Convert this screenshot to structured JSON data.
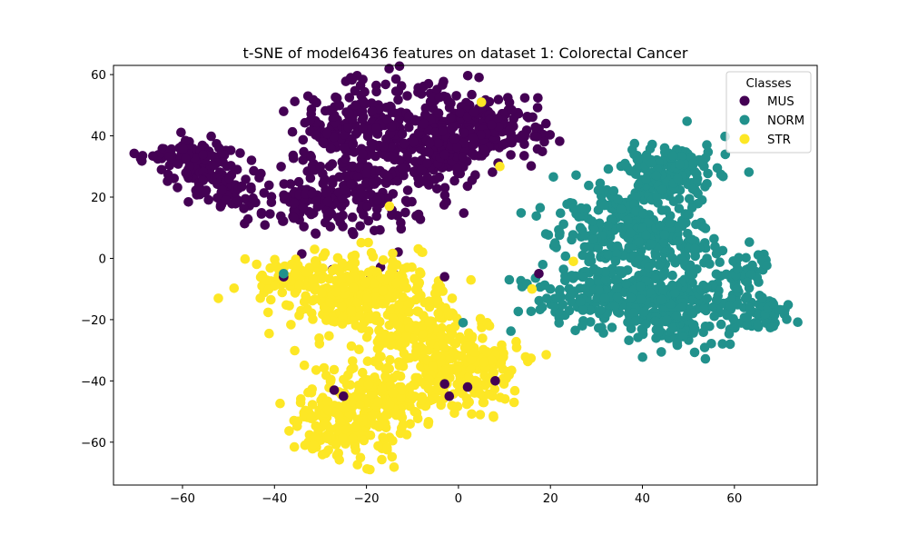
{
  "chart_data": {
    "type": "scatter",
    "title": "t-SNE of model6436 features on dataset 1: Colorectal Cancer",
    "xlabel": "",
    "ylabel": "",
    "xlim": [
      -75,
      78
    ],
    "ylim": [
      -74,
      63
    ],
    "x_ticks": [
      -60,
      -40,
      -20,
      0,
      20,
      40,
      60
    ],
    "y_ticks": [
      -60,
      -40,
      -20,
      0,
      20,
      40,
      60
    ],
    "grid": false,
    "legend": {
      "title": "Classes",
      "position": "top-right"
    },
    "series": [
      {
        "name": "MUS",
        "color": "#440154",
        "clusters": [
          {
            "cx": -58,
            "cy": 32,
            "sx": 5,
            "sy": 3.5,
            "n": 90
          },
          {
            "cx": -50,
            "cy": 22,
            "sx": 4,
            "sy": 3.5,
            "n": 70
          },
          {
            "cx": -33,
            "cy": 17,
            "sx": 5,
            "sy": 3.5,
            "n": 80
          },
          {
            "cx": -28,
            "cy": 43,
            "sx": 3,
            "sy": 5,
            "n": 40
          },
          {
            "cx": -20,
            "cy": 33,
            "sx": 7,
            "sy": 14,
            "n": 320
          },
          {
            "cx": -5,
            "cy": 40,
            "sx": 7,
            "sy": 8,
            "n": 220
          },
          {
            "cx": 8,
            "cy": 42,
            "sx": 6,
            "sy": 5,
            "n": 140
          }
        ],
        "points": [
          [
            -38,
            48
          ],
          [
            -30,
            30
          ],
          [
            -45,
            32
          ],
          [
            -31,
            8
          ],
          [
            17.5,
            -5
          ],
          [
            -3,
            -6
          ],
          [
            -38,
            -6
          ],
          [
            -25,
            -45
          ],
          [
            -27,
            -43
          ],
          [
            -3,
            -41
          ],
          [
            2,
            -42
          ],
          [
            8,
            -40
          ],
          [
            -2,
            -45
          ]
        ]
      },
      {
        "name": "NORM",
        "color": "#21918c",
        "clusters": [
          {
            "cx": 35,
            "cy": 10,
            "sx": 7,
            "sy": 9,
            "n": 250
          },
          {
            "cx": 46,
            "cy": 28,
            "sx": 5,
            "sy": 5,
            "n": 170
          },
          {
            "cx": 45,
            "cy": 6,
            "sx": 5,
            "sy": 5,
            "n": 120
          },
          {
            "cx": 33,
            "cy": -12,
            "sx": 8,
            "sy": 5,
            "n": 200
          },
          {
            "cx": 48,
            "cy": -17,
            "sx": 6,
            "sy": 6,
            "n": 200
          },
          {
            "cx": 62,
            "cy": -3,
            "sx": 3,
            "sy": 3,
            "n": 45
          },
          {
            "cx": 66,
            "cy": -18,
            "sx": 3.5,
            "sy": 2.5,
            "n": 60
          }
        ],
        "points": [
          [
            19,
            8
          ],
          [
            21,
            5
          ],
          [
            5,
            51
          ],
          [
            1,
            -21
          ],
          [
            -38,
            -5
          ],
          [
            20,
            -10
          ]
        ]
      },
      {
        "name": "STR",
        "color": "#fde725",
        "clusters": [
          {
            "cx": -22,
            "cy": -10,
            "sx": 9,
            "sy": 6,
            "n": 300
          },
          {
            "cx": -10,
            "cy": -25,
            "sx": 7,
            "sy": 8,
            "n": 200
          },
          {
            "cx": -24,
            "cy": -52,
            "sx": 6,
            "sy": 7,
            "n": 220
          },
          {
            "cx": 2,
            "cy": -37,
            "sx": 6,
            "sy": 6,
            "n": 170
          },
          {
            "cx": -13,
            "cy": -45,
            "sx": 5,
            "sy": 4,
            "n": 100
          },
          {
            "cx": -38,
            "cy": -6,
            "sx": 3,
            "sy": 3,
            "n": 25
          }
        ],
        "points": [
          [
            9,
            30
          ],
          [
            16,
            -10
          ],
          [
            25,
            -1
          ],
          [
            -15,
            17
          ],
          [
            -40,
            -9
          ],
          [
            5,
            51
          ]
        ]
      }
    ]
  }
}
